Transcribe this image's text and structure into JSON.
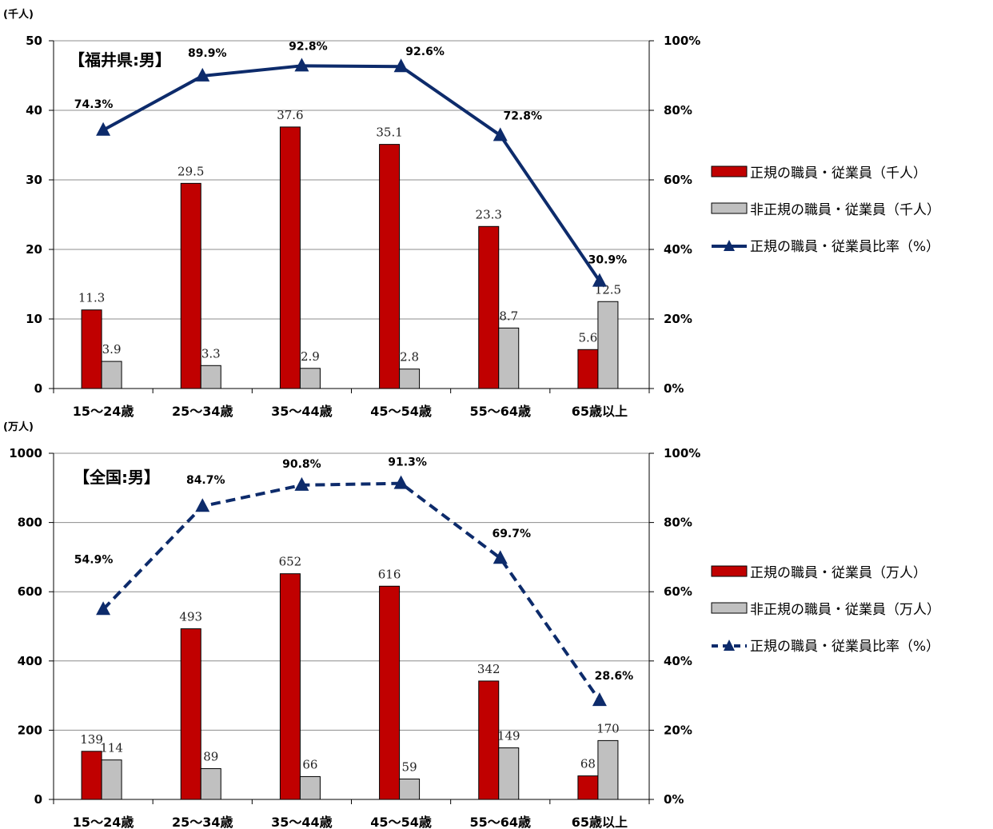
{
  "chart_data": [
    {
      "type": "bar",
      "title": "【福井県:男】",
      "y_unit": "(千人)",
      "categories": [
        "15～24歳",
        "25～34歳",
        "35～44歳",
        "45～54歳",
        "55～64歳",
        "65歳以上"
      ],
      "ylim": [
        0,
        50
      ],
      "yticks": [
        "0",
        "10",
        "20",
        "30",
        "40",
        "50"
      ],
      "y2lim": [
        0,
        100
      ],
      "y2ticks": [
        "0%",
        "20%",
        "40%",
        "60%",
        "80%",
        "100%"
      ],
      "series": [
        {
          "name": "正規の職員・従業員（千人）",
          "kind": "bar",
          "color": "#C00000",
          "values": [
            11.3,
            29.5,
            37.6,
            35.1,
            23.3,
            5.6
          ],
          "labels": [
            "11.3",
            "29.5",
            "37.6",
            "35.1",
            "23.3",
            "5.6"
          ]
        },
        {
          "name": "非正規の職員・従業員（千人）",
          "kind": "bar",
          "color": "#C0C0C0",
          "values": [
            3.9,
            3.3,
            2.9,
            2.8,
            8.7,
            12.5
          ],
          "labels": [
            "3.9",
            "3.3",
            "2.9",
            "2.8",
            "8.7",
            "12.5"
          ]
        },
        {
          "name": "正規の職員・従業員比率（%）",
          "kind": "line",
          "style": "solid",
          "color": "#0D2B6B",
          "values": [
            74.3,
            89.9,
            92.8,
            92.6,
            72.8,
            30.9
          ],
          "labels": [
            "74.3%",
            "89.9%",
            "92.8%",
            "92.6%",
            "72.8%",
            "30.9%"
          ]
        }
      ],
      "grid": true,
      "legend": "right"
    },
    {
      "type": "bar",
      "title": "【全国:男】",
      "y_unit": "(万人)",
      "categories": [
        "15～24歳",
        "25～34歳",
        "35～44歳",
        "45～54歳",
        "55～64歳",
        "65歳以上"
      ],
      "ylim": [
        0,
        1000
      ],
      "yticks": [
        "0",
        "200",
        "400",
        "600",
        "800",
        "1000"
      ],
      "y2lim": [
        0,
        100
      ],
      "y2ticks": [
        "0%",
        "20%",
        "40%",
        "60%",
        "80%",
        "100%"
      ],
      "series": [
        {
          "name": "正規の職員・従業員（万人）",
          "kind": "bar",
          "color": "#C00000",
          "values": [
            139,
            493,
            652,
            616,
            342,
            68
          ],
          "labels": [
            "139",
            "493",
            "652",
            "616",
            "342",
            "68"
          ]
        },
        {
          "name": "非正規の職員・従業員（万人）",
          "kind": "bar",
          "color": "#C0C0C0",
          "values": [
            114,
            89,
            66,
            59,
            149,
            170
          ],
          "labels": [
            "114",
            "89",
            "66",
            "59",
            "149",
            "170"
          ]
        },
        {
          "name": "正規の職員・従業員比率（%）",
          "kind": "line",
          "style": "dashed",
          "color": "#0D2B6B",
          "values": [
            54.9,
            84.7,
            90.8,
            91.3,
            69.7,
            28.6
          ],
          "labels": [
            "54.9%",
            "84.7%",
            "90.8%",
            "91.3%",
            "69.7%",
            "28.6%"
          ]
        }
      ],
      "grid": true,
      "legend": "right"
    }
  ]
}
